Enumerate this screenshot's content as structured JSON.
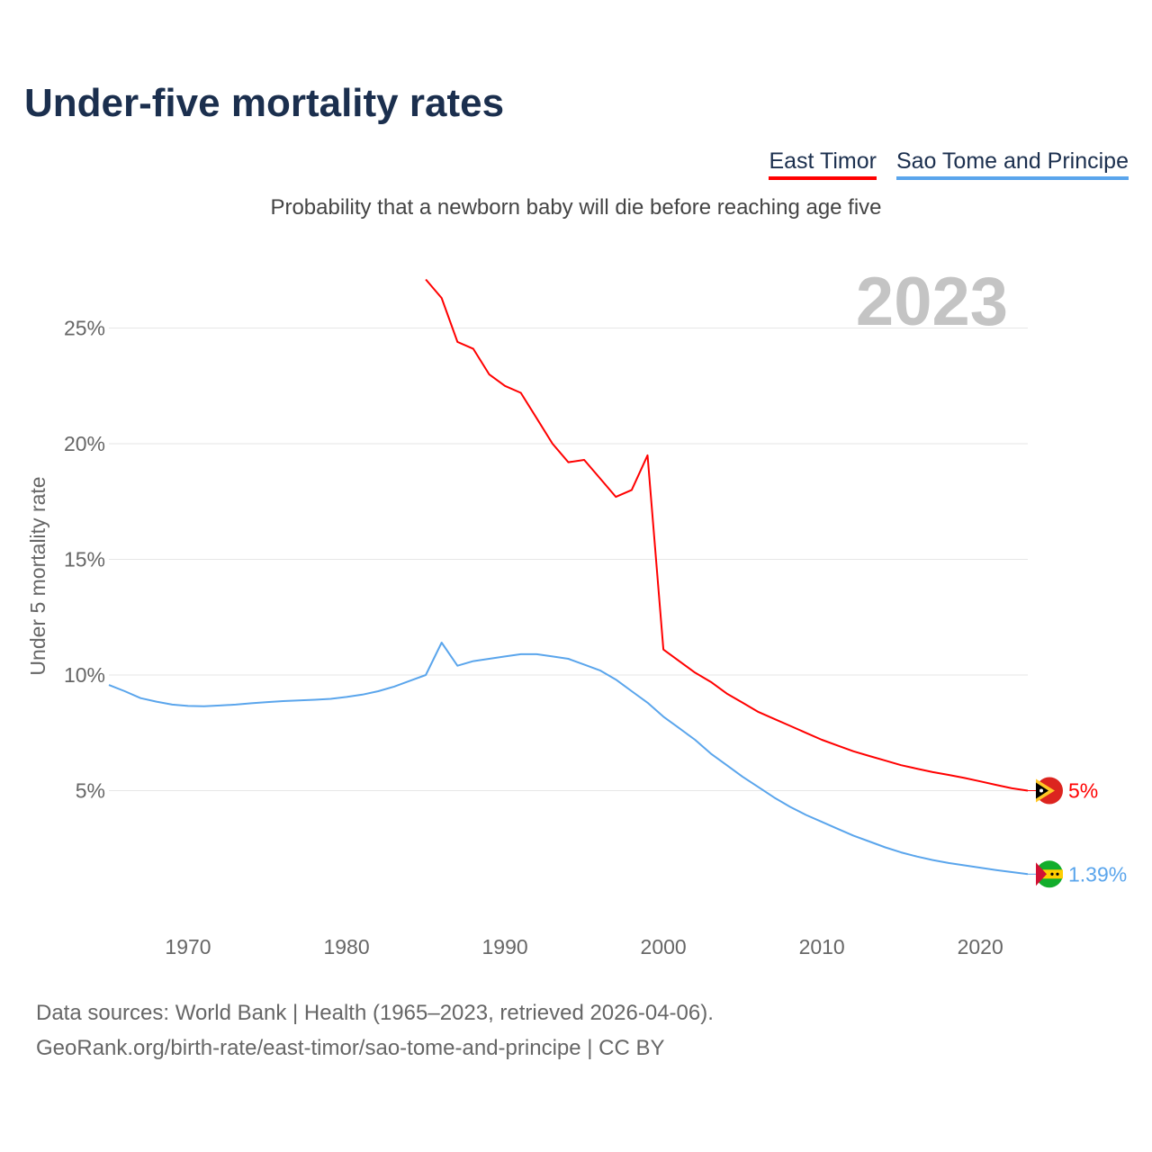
{
  "title": "Under-five mortality rates",
  "subtitle": "Probability that a newborn baby will die before reaching age five",
  "source_line1": "Data sources: World Bank | Health (1965–2023, retrieved 2026-04-06).",
  "source_line2": "GeoRank.org/birth-rate/east-timor/sao-tome-and-principe | CC BY",
  "chart_data": {
    "type": "line",
    "title": "Under-five mortality rates",
    "ylabel": "Under 5 mortality rate",
    "xlabel": "",
    "year_label": "2023",
    "xlim": [
      1965,
      2023
    ],
    "ylim": [
      0,
      27
    ],
    "xticks": [
      1970,
      1980,
      1990,
      2000,
      2010,
      2020
    ],
    "yticks": [
      5,
      10,
      15,
      20,
      25
    ],
    "ytick_labels": [
      "5%",
      "10%",
      "15%",
      "20%",
      "25%"
    ],
    "grid": true,
    "legend_position": "top-right",
    "series": [
      {
        "name": "East Timor",
        "color": "#ff0000",
        "end_label": "5%",
        "flag": "east-timor-flag",
        "x": [
          1985,
          1986,
          1987,
          1988,
          1989,
          1990,
          1991,
          1992,
          1993,
          1994,
          1995,
          1996,
          1997,
          1998,
          1999,
          2000,
          2001,
          2002,
          2003,
          2004,
          2005,
          2006,
          2007,
          2008,
          2009,
          2010,
          2011,
          2012,
          2013,
          2014,
          2015,
          2016,
          2017,
          2018,
          2019,
          2020,
          2021,
          2022,
          2023
        ],
        "y": [
          27.1,
          26.3,
          24.4,
          24.1,
          23.0,
          22.5,
          22.2,
          21.1,
          20.0,
          19.2,
          19.3,
          18.5,
          17.7,
          18.0,
          19.5,
          11.1,
          10.6,
          10.1,
          9.7,
          9.2,
          8.8,
          8.4,
          8.1,
          7.8,
          7.5,
          7.2,
          6.95,
          6.7,
          6.5,
          6.3,
          6.1,
          5.95,
          5.8,
          5.68,
          5.55,
          5.4,
          5.25,
          5.1,
          5.0
        ]
      },
      {
        "name": "Sao Tome and Principe",
        "color": "#5aa5ec",
        "end_label": "1.39%",
        "flag": "sao-tome-flag",
        "x": [
          1965,
          1966,
          1967,
          1968,
          1969,
          1970,
          1971,
          1972,
          1973,
          1974,
          1975,
          1976,
          1977,
          1978,
          1979,
          1980,
          1981,
          1982,
          1983,
          1984,
          1985,
          1986,
          1987,
          1988,
          1989,
          1990,
          1991,
          1992,
          1993,
          1994,
          1995,
          1996,
          1997,
          1998,
          1999,
          2000,
          2001,
          2002,
          2003,
          2004,
          2005,
          2006,
          2007,
          2008,
          2009,
          2010,
          2011,
          2012,
          2013,
          2014,
          2015,
          2016,
          2017,
          2018,
          2019,
          2020,
          2021,
          2022,
          2023
        ],
        "y": [
          9.57,
          9.3,
          9.0,
          8.85,
          8.72,
          8.66,
          8.65,
          8.68,
          8.72,
          8.78,
          8.83,
          8.87,
          8.9,
          8.93,
          8.97,
          9.05,
          9.15,
          9.3,
          9.5,
          9.75,
          10.0,
          11.4,
          10.4,
          10.6,
          10.7,
          10.8,
          10.9,
          10.9,
          10.8,
          10.7,
          10.45,
          10.2,
          9.8,
          9.3,
          8.8,
          8.2,
          7.7,
          7.2,
          6.6,
          6.1,
          5.6,
          5.15,
          4.7,
          4.3,
          3.95,
          3.65,
          3.35,
          3.05,
          2.8,
          2.55,
          2.33,
          2.15,
          2.0,
          1.87,
          1.77,
          1.67,
          1.57,
          1.48,
          1.39
        ]
      }
    ]
  }
}
